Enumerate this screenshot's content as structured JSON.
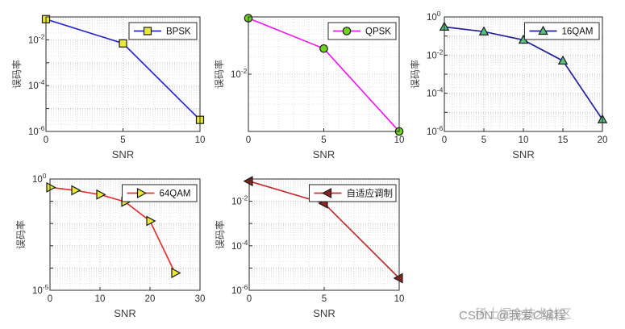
{
  "figure": {
    "background": "#ffffff"
  },
  "watermark": {
    "text_1": "CSDN @我爱C编程",
    "text_2": "稀土掘金技术社区",
    "color": "#8a8a8a"
  },
  "chart_data": [
    {
      "type": "line",
      "legend": "BPSK",
      "xlabel": "SNR",
      "ylabel": "误码率",
      "x": [
        0,
        5,
        10
      ],
      "y": [
        0.08,
        0.007,
        3.2e-06
      ],
      "xlim": [
        0,
        10
      ],
      "xticks": [
        0,
        5,
        10
      ],
      "yscale": "log",
      "ylim": [
        1e-06,
        0.1
      ],
      "ytick_exponents": [
        -2,
        -4,
        -6
      ],
      "grid": "major+minor",
      "legend_position": "top-right",
      "line_color": "#2a2ad0",
      "marker": "square",
      "marker_fill": "#e9e93c",
      "marker_edge": "#1a1a1a"
    },
    {
      "type": "line",
      "legend": "QPSK",
      "xlabel": "SNR",
      "ylabel": "误码率",
      "x": [
        0,
        5,
        10
      ],
      "y": [
        0.095,
        0.028,
        0.001
      ],
      "xlim": [
        0,
        10
      ],
      "xticks": [
        0,
        5,
        10
      ],
      "yscale": "log",
      "ylim": [
        0.001,
        0.1
      ],
      "ytick_exponents": [
        -2
      ],
      "grid": "major+minor",
      "legend_position": "top-right",
      "line_color": "#ef1fef",
      "marker": "circle",
      "marker_fill": "#6ed321",
      "marker_edge": "#1a1a1a"
    },
    {
      "type": "line",
      "legend": "16QAM",
      "xlabel": "SNR",
      "ylabel": "误码率",
      "x": [
        0,
        5,
        10,
        15,
        20
      ],
      "y": [
        0.3,
        0.17,
        0.062,
        0.005,
        4.2e-06
      ],
      "xlim": [
        0,
        20
      ],
      "xticks": [
        0,
        5,
        10,
        15,
        20
      ],
      "yscale": "log",
      "ylim": [
        1e-06,
        1
      ],
      "ytick_exponents": [
        0,
        -2,
        -4,
        -6
      ],
      "grid": "major+minor",
      "legend_position": "top-right",
      "line_color": "#23239b",
      "marker": "triangle-up",
      "marker_fill": "#52c182",
      "marker_edge": "#1a1a1a"
    },
    {
      "type": "line",
      "legend": "64QAM",
      "xlabel": "SNR",
      "ylabel": "误码率",
      "x": [
        0,
        5,
        10,
        15,
        20,
        25
      ],
      "y": [
        0.42,
        0.31,
        0.2,
        0.095,
        0.013,
        6e-05
      ],
      "xlim": [
        0,
        30
      ],
      "xticks": [
        0,
        10,
        20,
        30
      ],
      "yscale": "log",
      "ylim": [
        1e-05,
        1
      ],
      "ytick_exponents": [
        0,
        -5
      ],
      "grid": "major+minor",
      "legend_position": "top-right",
      "line_color": "#e63030",
      "marker": "triangle-right",
      "marker_fill": "#e9e93c",
      "marker_edge": "#1a1a1a"
    },
    {
      "type": "line",
      "legend": "自适应调制",
      "xlabel": "SNR",
      "ylabel": "误码率",
      "x": [
        0,
        5,
        10
      ],
      "y": [
        0.08,
        0.008,
        3.5e-06
      ],
      "xlim": [
        0,
        10
      ],
      "xticks": [
        0,
        5,
        10
      ],
      "yscale": "log",
      "ylim": [
        1e-06,
        0.1
      ],
      "ytick_exponents": [
        -2,
        -4,
        -6
      ],
      "grid": "major+minor",
      "legend_position": "top-right",
      "line_color": "#c03030",
      "marker": "triangle-left",
      "marker_fill": "#8e2420",
      "marker_edge": "#1a1a1a"
    }
  ]
}
